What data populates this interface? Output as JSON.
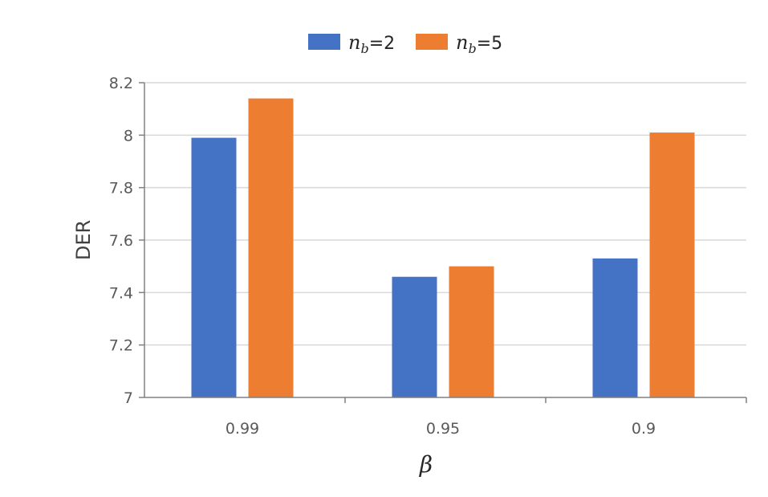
{
  "chart_data": {
    "type": "bar",
    "categories": [
      "0.99",
      "0.95",
      "0.9"
    ],
    "series": [
      {
        "name": "n_b=2",
        "legend_var": "n",
        "legend_sub": "b",
        "legend_rest": "=2",
        "color": "#4472C4",
        "values": [
          7.99,
          7.46,
          7.53
        ]
      },
      {
        "name": "n_b=5",
        "legend_var": "n",
        "legend_sub": "b",
        "legend_rest": "=5",
        "color": "#ED7D31",
        "values": [
          8.14,
          7.5,
          8.01
        ]
      }
    ],
    "xlabel": "β",
    "ylabel": "DER",
    "ylim": [
      7,
      8.2
    ],
    "yticks": [
      "7",
      "7.2",
      "7.4",
      "7.6",
      "7.8",
      "8",
      "8.2"
    ],
    "grid": true,
    "legend_position": "top",
    "colors": {
      "grid": "#D9D9D9",
      "axis": "#808080",
      "tick_text": "#595959"
    }
  }
}
